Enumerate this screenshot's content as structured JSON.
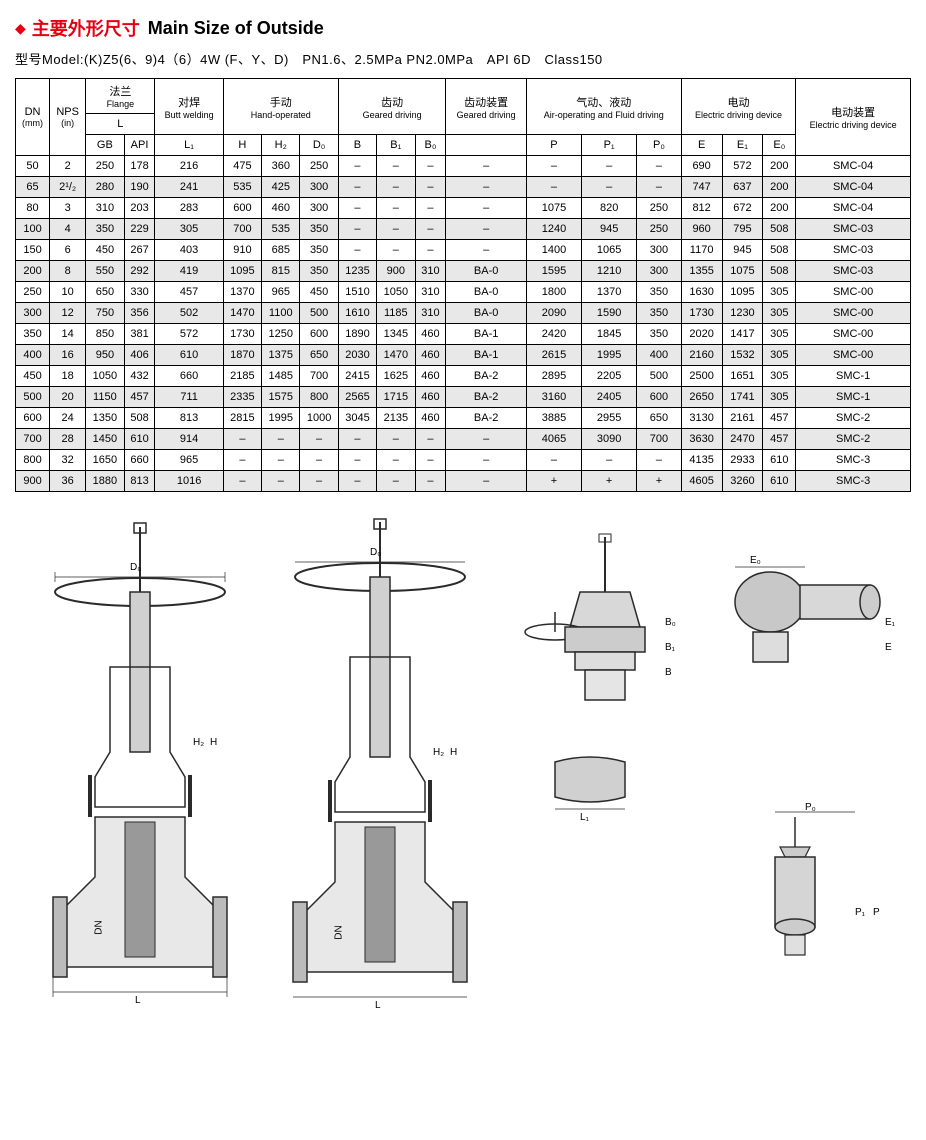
{
  "header": {
    "diamond": "◆",
    "title_cn": "主要外形尺寸",
    "title_en": "Main Size of Outside",
    "model_line": "型号Model:(K)Z5(6、9)4（6）4W (F、Y、D)　PN1.6、2.5MPa  PN2.0MPa　API 6D　Class150"
  },
  "table": {
    "group_headers": {
      "dn": {
        "cn": "DN",
        "unit": "(mm)"
      },
      "nps": {
        "cn": "NPS",
        "unit": "(in)"
      },
      "flange": {
        "cn": "法兰",
        "en": "Flange",
        "sub": "L"
      },
      "butt": {
        "cn": "对焊",
        "en": "Butt welding"
      },
      "hand": {
        "cn": "手动",
        "en": "Hand-operated"
      },
      "geared": {
        "cn": "齿动",
        "en": "Geared driving"
      },
      "geared_dev": {
        "cn": "齿动装置",
        "en": "Geared driving"
      },
      "air": {
        "cn": "气动、液动",
        "en": "Air-operating and Fluid driving"
      },
      "electric": {
        "cn": "电动",
        "en": "Electric driving device"
      },
      "electric_dev": {
        "cn": "电动装置",
        "en": "Electric driving device"
      }
    },
    "sub_headers": [
      "GB",
      "API",
      "L₁",
      "H",
      "H₂",
      "D₀",
      "B",
      "B₁",
      "B₀",
      "",
      "P",
      "P₁",
      "P₀",
      "E",
      "E₁",
      "E₀",
      ""
    ],
    "rows": [
      [
        "50",
        "2",
        "250",
        "178",
        "216",
        "475",
        "360",
        "250",
        "–",
        "–",
        "–",
        "–",
        "–",
        "–",
        "–",
        "690",
        "572",
        "200",
        "SMC-04"
      ],
      [
        "65",
        "2¹/₂",
        "280",
        "190",
        "241",
        "535",
        "425",
        "300",
        "–",
        "–",
        "–",
        "–",
        "–",
        "–",
        "–",
        "747",
        "637",
        "200",
        "SMC-04"
      ],
      [
        "80",
        "3",
        "310",
        "203",
        "283",
        "600",
        "460",
        "300",
        "–",
        "–",
        "–",
        "–",
        "1075",
        "820",
        "250",
        "812",
        "672",
        "200",
        "SMC-04"
      ],
      [
        "100",
        "4",
        "350",
        "229",
        "305",
        "700",
        "535",
        "350",
        "–",
        "–",
        "–",
        "–",
        "1240",
        "945",
        "250",
        "960",
        "795",
        "508",
        "SMC-03"
      ],
      [
        "150",
        "6",
        "450",
        "267",
        "403",
        "910",
        "685",
        "350",
        "–",
        "–",
        "–",
        "–",
        "1400",
        "1065",
        "300",
        "1170",
        "945",
        "508",
        "SMC-03"
      ],
      [
        "200",
        "8",
        "550",
        "292",
        "419",
        "1095",
        "815",
        "350",
        "1235",
        "900",
        "310",
        "BA-0",
        "1595",
        "1210",
        "300",
        "1355",
        "1075",
        "508",
        "SMC-03"
      ],
      [
        "250",
        "10",
        "650",
        "330",
        "457",
        "1370",
        "965",
        "450",
        "1510",
        "1050",
        "310",
        "BA-0",
        "1800",
        "1370",
        "350",
        "1630",
        "1095",
        "305",
        "SMC-00"
      ],
      [
        "300",
        "12",
        "750",
        "356",
        "502",
        "1470",
        "1100",
        "500",
        "1610",
        "1185",
        "310",
        "BA-0",
        "2090",
        "1590",
        "350",
        "1730",
        "1230",
        "305",
        "SMC-00"
      ],
      [
        "350",
        "14",
        "850",
        "381",
        "572",
        "1730",
        "1250",
        "600",
        "1890",
        "1345",
        "460",
        "BA-1",
        "2420",
        "1845",
        "350",
        "2020",
        "1417",
        "305",
        "SMC-00"
      ],
      [
        "400",
        "16",
        "950",
        "406",
        "610",
        "1870",
        "1375",
        "650",
        "2030",
        "1470",
        "460",
        "BA-1",
        "2615",
        "1995",
        "400",
        "2160",
        "1532",
        "305",
        "SMC-00"
      ],
      [
        "450",
        "18",
        "1050",
        "432",
        "660",
        "2185",
        "1485",
        "700",
        "2415",
        "1625",
        "460",
        "BA-2",
        "2895",
        "2205",
        "500",
        "2500",
        "1651",
        "305",
        "SMC-1"
      ],
      [
        "500",
        "20",
        "1150",
        "457",
        "711",
        "2335",
        "1575",
        "800",
        "2565",
        "1715",
        "460",
        "BA-2",
        "3160",
        "2405",
        "600",
        "2650",
        "1741",
        "305",
        "SMC-1"
      ],
      [
        "600",
        "24",
        "1350",
        "508",
        "813",
        "2815",
        "1995",
        "1000",
        "3045",
        "2135",
        "460",
        "BA-2",
        "3885",
        "2955",
        "650",
        "3130",
        "2161",
        "457",
        "SMC-2"
      ],
      [
        "700",
        "28",
        "1450",
        "610",
        "914",
        "–",
        "–",
        "–",
        "–",
        "–",
        "–",
        "–",
        "4065",
        "3090",
        "700",
        "3630",
        "2470",
        "457",
        "SMC-2"
      ],
      [
        "800",
        "32",
        "1650",
        "660",
        "965",
        "–",
        "–",
        "–",
        "–",
        "–",
        "–",
        "–",
        "–",
        "–",
        "–",
        "4135",
        "2933",
        "610",
        "SMC-3"
      ],
      [
        "900",
        "36",
        "1880",
        "813",
        "1016",
        "–",
        "–",
        "–",
        "–",
        "–",
        "–",
        "–",
        "+",
        "+",
        "+",
        "4605",
        "3260",
        "610",
        "SMC-3"
      ]
    ]
  },
  "diagram": {
    "labels": {
      "d0": "D₀",
      "h": "H",
      "h2": "H₂",
      "l": "L",
      "dn": "DN",
      "b": "B",
      "b0": "B₀",
      "b1": "B₁",
      "l1": "L₁",
      "e": "E",
      "e0": "E₀",
      "e1": "E₁",
      "p": "P",
      "p0": "P₀",
      "p1": "P₁"
    },
    "colors": {
      "stroke": "#2a2a2a",
      "fill": "#bfbfbf",
      "bg": "#ffffff"
    }
  }
}
